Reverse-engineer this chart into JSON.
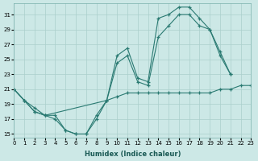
{
  "xlabel": "Humidex (Indice chaleur)",
  "background_color": "#cce8e6",
  "grid_color": "#aacfcc",
  "line_color": "#2a7a72",
  "xlim": [
    0,
    23
  ],
  "ylim": [
    14.5,
    32.5
  ],
  "yticks": [
    15,
    17,
    19,
    21,
    23,
    25,
    27,
    29,
    31
  ],
  "xticks": [
    0,
    1,
    2,
    3,
    4,
    5,
    6,
    7,
    8,
    9,
    10,
    11,
    12,
    13,
    14,
    15,
    16,
    17,
    18,
    19,
    20,
    21,
    22,
    23
  ],
  "series": [
    {
      "x": [
        0,
        1,
        2,
        3,
        4,
        5,
        6,
        7,
        8,
        9,
        10,
        11,
        12,
        13,
        14,
        15,
        16,
        17,
        18,
        19,
        20,
        21
      ],
      "y": [
        21.0,
        19.5,
        18.5,
        17.5,
        17.5,
        15.5,
        15.0,
        15.0,
        17.5,
        19.5,
        25.5,
        26.5,
        22.5,
        22.0,
        30.5,
        31.0,
        32.0,
        32.0,
        30.5,
        29.0,
        26.0,
        23.0
      ]
    },
    {
      "x": [
        0,
        1,
        2,
        3,
        4,
        5,
        6,
        7,
        8,
        9,
        10,
        11,
        12,
        13,
        14,
        15,
        16,
        17,
        18,
        19,
        20,
        21
      ],
      "y": [
        21.0,
        19.5,
        18.0,
        17.5,
        17.0,
        15.5,
        15.0,
        15.0,
        17.0,
        19.5,
        24.5,
        25.5,
        22.0,
        21.5,
        28.0,
        29.5,
        31.0,
        31.0,
        29.5,
        29.0,
        25.5,
        23.0
      ]
    },
    {
      "x": [
        0,
        1,
        2,
        3,
        9,
        10,
        11,
        12,
        13,
        14,
        15,
        16,
        17,
        18,
        19,
        20,
        21,
        22,
        23
      ],
      "y": [
        21.0,
        19.5,
        18.0,
        17.5,
        19.5,
        20.0,
        20.5,
        20.5,
        20.5,
        20.5,
        20.5,
        20.5,
        20.5,
        20.5,
        20.5,
        21.0,
        21.0,
        21.5,
        21.5
      ]
    }
  ]
}
